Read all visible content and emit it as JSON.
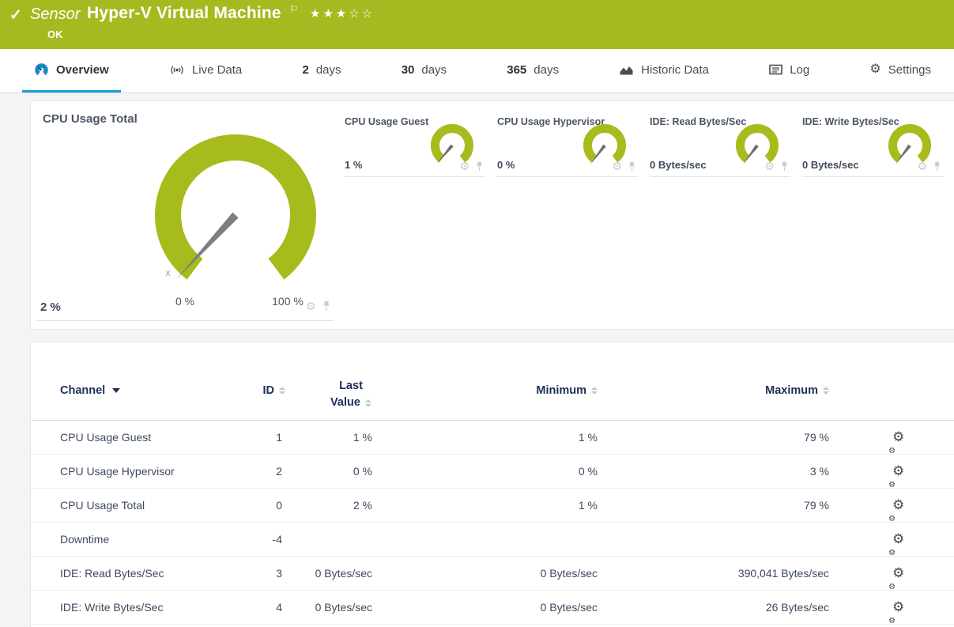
{
  "header": {
    "kind_label": "Sensor",
    "title": "Hyper-V Virtual Machine",
    "status_label": "OK",
    "rating": {
      "filled": 3,
      "total": 5
    }
  },
  "tabs": [
    {
      "label": "Overview",
      "icon": "gauge-icon",
      "active": true
    },
    {
      "label": "Live Data",
      "icon": "live-icon",
      "active": false
    },
    {
      "num": "2",
      "label": "days",
      "active": false
    },
    {
      "num": "30",
      "label": "days",
      "active": false
    },
    {
      "num": "365",
      "label": "days",
      "active": false
    },
    {
      "label": "Historic Data",
      "icon": "historic-icon",
      "active": false
    },
    {
      "label": "Log",
      "icon": "log-icon",
      "active": false
    },
    {
      "label": "Settings",
      "icon": "settings-icon",
      "active": false
    }
  ],
  "gauges": {
    "primary": {
      "title": "CPU Usage Total",
      "value": "2 %",
      "percent": 2,
      "min_label": "0 %",
      "max_label": "100 %"
    },
    "small": [
      {
        "title": "CPU Usage Guest",
        "value": "1 %",
        "percent": 1
      },
      {
        "title": "CPU Usage Hypervisor",
        "value": "0 %",
        "percent": 0
      },
      {
        "title": "IDE: Read Bytes/Sec",
        "value": "0 Bytes/sec",
        "percent": 0
      },
      {
        "title": "IDE: Write Bytes/Sec",
        "value": "0 Bytes/sec",
        "percent": 0
      }
    ]
  },
  "channel_table": {
    "header": {
      "channel": "Channel",
      "id": "ID",
      "last_line1": "Last",
      "last_line2": "Value",
      "minimum": "Minimum",
      "maximum": "Maximum"
    },
    "rows": [
      {
        "channel": "CPU Usage Guest",
        "id": "1",
        "last": "1 %",
        "min": "1 %",
        "max": "79 %"
      },
      {
        "channel": "CPU Usage Hypervisor",
        "id": "2",
        "last": "0 %",
        "min": "0 %",
        "max": "3 %"
      },
      {
        "channel": "CPU Usage Total",
        "id": "0",
        "last": "2 %",
        "min": "1 %",
        "max": "79 %"
      },
      {
        "channel": "Downtime",
        "id": "-4",
        "last": "",
        "min": "",
        "max": ""
      },
      {
        "channel": "IDE: Read Bytes/Sec",
        "id": "3",
        "last": "0 Bytes/sec",
        "min": "0 Bytes/sec",
        "max": "390,041 Bytes/sec"
      },
      {
        "channel": "IDE: Write Bytes/Sec",
        "id": "4",
        "last": "0 Bytes/sec",
        "min": "0 Bytes/sec",
        "max": "26 Bytes/sec"
      }
    ]
  },
  "icons": {
    "check": "✓",
    "flag": "⚐",
    "star_filled": "★",
    "star_empty": "☆",
    "gear": "⚙"
  },
  "colors": {
    "brand_green": "#a7b921",
    "gauge_green": "#a8bb1c",
    "accent_blue": "#1b9dd9",
    "overview_icon_blue": "#1a87c5",
    "table_header_navy": "#1c2e58",
    "needle_gray": "#7e7e7e",
    "muted_icon_gray": "#c8cbd0"
  }
}
